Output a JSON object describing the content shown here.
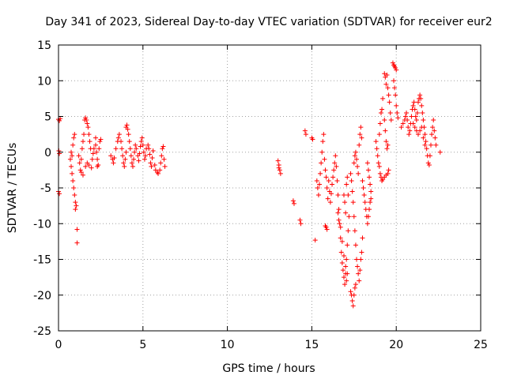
{
  "chart_data": {
    "type": "scatter",
    "title": "Day 341 of 2023, Sidereal Day-to-day VTEC variation (SDTVAR) for receiver eur2",
    "xlabel": "GPS time / hours",
    "ylabel": "SDTVAR / TECUs",
    "xlim": [
      0,
      25
    ],
    "ylim": [
      -25,
      15
    ],
    "xticks": [
      0,
      5,
      10,
      15,
      20,
      25
    ],
    "yticks": [
      -25,
      -20,
      -15,
      -10,
      -5,
      0,
      5,
      10,
      15
    ],
    "grid": true,
    "marker": "+",
    "color": "#ff0000",
    "series": [
      {
        "name": "SDTVAR",
        "points": [
          [
            0.0,
            4.6
          ],
          [
            0.05,
            4.4
          ],
          [
            0.1,
            4.7
          ],
          [
            0.02,
            0.2
          ],
          [
            0.05,
            -0.2
          ],
          [
            0.0,
            -5.5
          ],
          [
            0.05,
            -5.8
          ],
          [
            0.7,
            -1.0
          ],
          [
            0.75,
            -2.0
          ],
          [
            0.8,
            -3.0
          ],
          [
            0.85,
            -4.0
          ],
          [
            0.9,
            -5.0
          ],
          [
            0.95,
            -6.0
          ],
          [
            1.0,
            -7.0
          ],
          [
            1.05,
            -7.5
          ],
          [
            1.0,
            -8.0
          ],
          [
            0.75,
            0.0
          ],
          [
            0.8,
            -0.5
          ],
          [
            0.85,
            1.0
          ],
          [
            0.9,
            2.0
          ],
          [
            0.95,
            2.5
          ],
          [
            1.1,
            -10.8
          ],
          [
            1.1,
            -12.7
          ],
          [
            1.2,
            -0.5
          ],
          [
            1.25,
            -1.5
          ],
          [
            1.3,
            -2.5
          ],
          [
            1.35,
            -1.0
          ],
          [
            1.4,
            0.5
          ],
          [
            1.45,
            1.5
          ],
          [
            1.5,
            2.5
          ],
          [
            1.55,
            4.5
          ],
          [
            1.6,
            4.8
          ],
          [
            1.65,
            4.5
          ],
          [
            1.7,
            4.0
          ],
          [
            1.75,
            3.5
          ],
          [
            1.8,
            2.5
          ],
          [
            1.85,
            1.5
          ],
          [
            1.9,
            0.5
          ],
          [
            1.35,
            -2.8
          ],
          [
            1.45,
            -3.2
          ],
          [
            1.6,
            -2.0
          ],
          [
            1.7,
            -1.5
          ],
          [
            1.8,
            -1.8
          ],
          [
            1.95,
            -2.2
          ],
          [
            2.0,
            -1.0
          ],
          [
            2.05,
            -0.2
          ],
          [
            2.1,
            0.5
          ],
          [
            2.2,
            1.0
          ],
          [
            2.25,
            0.0
          ],
          [
            2.3,
            -1.0
          ],
          [
            2.35,
            -1.8
          ],
          [
            2.4,
            0.5
          ],
          [
            2.45,
            1.5
          ],
          [
            2.5,
            1.8
          ],
          [
            2.2,
            2.0
          ],
          [
            2.3,
            -2.0
          ],
          [
            3.1,
            -0.5
          ],
          [
            3.2,
            -1.0
          ],
          [
            3.25,
            -1.5
          ],
          [
            3.3,
            -0.8
          ],
          [
            3.4,
            0.5
          ],
          [
            3.5,
            1.5
          ],
          [
            3.55,
            2.0
          ],
          [
            3.6,
            2.5
          ],
          [
            3.7,
            1.5
          ],
          [
            3.75,
            0.5
          ],
          [
            3.8,
            -0.5
          ],
          [
            3.85,
            -1.5
          ],
          [
            3.9,
            -2.0
          ],
          [
            3.95,
            -1.0
          ],
          [
            4.0,
            0.0
          ],
          [
            4.0,
            3.5
          ],
          [
            4.05,
            3.8
          ],
          [
            4.1,
            3.2
          ],
          [
            4.15,
            2.5
          ],
          [
            4.2,
            1.5
          ],
          [
            4.25,
            0.5
          ],
          [
            4.3,
            -0.5
          ],
          [
            4.35,
            -1.5
          ],
          [
            4.4,
            -2.0
          ],
          [
            4.45,
            -1.0
          ],
          [
            4.5,
            0.0
          ],
          [
            4.55,
            1.0
          ],
          [
            4.6,
            0.5
          ],
          [
            4.7,
            -0.5
          ],
          [
            4.75,
            -1.2
          ],
          [
            4.8,
            -0.2
          ],
          [
            4.85,
            0.8
          ],
          [
            4.9,
            1.5
          ],
          [
            4.95,
            2.0
          ],
          [
            5.0,
            1.0
          ],
          [
            5.05,
            0.0
          ],
          [
            5.1,
            -1.0
          ],
          [
            5.15,
            -0.5
          ],
          [
            5.2,
            0.5
          ],
          [
            5.3,
            1.0
          ],
          [
            5.35,
            0.5
          ],
          [
            5.4,
            -0.3
          ],
          [
            5.45,
            -1.5
          ],
          [
            5.5,
            -2.0
          ],
          [
            5.55,
            -0.8
          ],
          [
            5.6,
            0.2
          ],
          [
            5.7,
            -1.8
          ],
          [
            5.75,
            -2.5
          ],
          [
            5.85,
            -2.8
          ],
          [
            5.9,
            -3.0
          ],
          [
            6.0,
            -2.5
          ],
          [
            6.05,
            -1.5
          ],
          [
            6.1,
            -0.5
          ],
          [
            6.15,
            0.5
          ],
          [
            6.2,
            0.8
          ],
          [
            6.25,
            -1.0
          ],
          [
            6.3,
            -2.0
          ],
          [
            13.0,
            -1.2
          ],
          [
            13.05,
            -1.8
          ],
          [
            13.1,
            -2.5
          ],
          [
            13.15,
            -3.0
          ],
          [
            13.05,
            -2.2
          ],
          [
            13.9,
            -6.8
          ],
          [
            13.95,
            -7.2
          ],
          [
            14.3,
            -9.5
          ],
          [
            14.35,
            -10.0
          ],
          [
            14.6,
            3.0
          ],
          [
            14.65,
            2.5
          ],
          [
            15.0,
            2.0
          ],
          [
            15.05,
            1.8
          ],
          [
            15.2,
            -12.3
          ],
          [
            15.3,
            -4.0
          ],
          [
            15.35,
            -5.0
          ],
          [
            15.4,
            -6.0
          ],
          [
            15.45,
            -4.5
          ],
          [
            15.5,
            -3.0
          ],
          [
            15.55,
            -1.5
          ],
          [
            15.6,
            0.0
          ],
          [
            15.65,
            1.5
          ],
          [
            15.7,
            2.5
          ],
          [
            15.75,
            -1.0
          ],
          [
            15.8,
            -2.5
          ],
          [
            15.85,
            -3.5
          ],
          [
            15.9,
            -5.0
          ],
          [
            15.95,
            -6.5
          ],
          [
            15.8,
            -10.3
          ],
          [
            15.85,
            -10.5
          ],
          [
            15.9,
            -10.8
          ],
          [
            16.0,
            -4.0
          ],
          [
            16.05,
            -5.5
          ],
          [
            16.1,
            -7.0
          ],
          [
            16.15,
            -5.8
          ],
          [
            16.2,
            -4.5
          ],
          [
            16.25,
            -3.5
          ],
          [
            16.3,
            -2.5
          ],
          [
            16.35,
            -1.5
          ],
          [
            16.4,
            -0.5
          ],
          [
            16.45,
            -2.0
          ],
          [
            16.5,
            -4.0
          ],
          [
            16.55,
            -6.0
          ],
          [
            16.6,
            -8.0
          ],
          [
            16.65,
            -10.0
          ],
          [
            16.7,
            -12.0
          ],
          [
            16.75,
            -14.0
          ],
          [
            16.8,
            -15.5
          ],
          [
            16.85,
            -16.5
          ],
          [
            16.9,
            -17.5
          ],
          [
            16.95,
            -18.5
          ],
          [
            17.0,
            -17.0
          ],
          [
            17.05,
            -15.0
          ],
          [
            17.1,
            -13.0
          ],
          [
            17.15,
            -11.0
          ],
          [
            17.2,
            -9.0
          ],
          [
            16.55,
            -8.5
          ],
          [
            16.6,
            -9.5
          ],
          [
            16.7,
            -10.5
          ],
          [
            16.8,
            -12.5
          ],
          [
            16.9,
            -14.5
          ],
          [
            17.0,
            -16.0
          ],
          [
            17.05,
            -18.0
          ],
          [
            17.1,
            -17.0
          ],
          [
            16.9,
            -6.0
          ],
          [
            16.95,
            -7.0
          ],
          [
            17.0,
            -8.5
          ],
          [
            17.05,
            -4.5
          ],
          [
            17.1,
            -3.5
          ],
          [
            17.15,
            -6.0
          ],
          [
            17.3,
            -3.0
          ],
          [
            17.35,
            -4.0
          ],
          [
            17.4,
            -5.5
          ],
          [
            17.45,
            -7.0
          ],
          [
            17.5,
            -9.0
          ],
          [
            17.55,
            -11.0
          ],
          [
            17.6,
            -13.0
          ],
          [
            17.65,
            -15.0
          ],
          [
            17.3,
            -19.5
          ],
          [
            17.35,
            -20.0
          ],
          [
            17.4,
            -20.8
          ],
          [
            17.45,
            -21.5
          ],
          [
            17.5,
            -20.0
          ],
          [
            17.55,
            -19.0
          ],
          [
            17.6,
            -18.5
          ],
          [
            17.7,
            -16.0
          ],
          [
            17.75,
            -17.0
          ],
          [
            17.8,
            -18.0
          ],
          [
            17.85,
            -16.5
          ],
          [
            17.9,
            -15.0
          ],
          [
            17.95,
            -14.0
          ],
          [
            18.0,
            -12.0
          ],
          [
            17.5,
            -1.5
          ],
          [
            17.55,
            -0.5
          ],
          [
            17.6,
            0.0
          ],
          [
            17.65,
            -1.0
          ],
          [
            17.7,
            -2.0
          ],
          [
            17.75,
            -3.0
          ],
          [
            17.8,
            1.0
          ],
          [
            17.85,
            2.5
          ],
          [
            17.9,
            3.5
          ],
          [
            17.95,
            2.0
          ],
          [
            18.0,
            -4.0
          ],
          [
            18.05,
            -5.0
          ],
          [
            18.1,
            -6.0
          ],
          [
            18.15,
            -7.0
          ],
          [
            18.2,
            -8.0
          ],
          [
            18.25,
            -9.0
          ],
          [
            18.3,
            -10.0
          ],
          [
            18.35,
            -9.0
          ],
          [
            18.4,
            -8.0
          ],
          [
            18.45,
            -7.0
          ],
          [
            18.5,
            -6.5
          ],
          [
            18.3,
            -1.5
          ],
          [
            18.35,
            -2.5
          ],
          [
            18.4,
            -3.5
          ],
          [
            18.45,
            -4.5
          ],
          [
            18.5,
            -5.5
          ],
          [
            18.8,
            1.5
          ],
          [
            18.85,
            0.5
          ],
          [
            18.9,
            -0.5
          ],
          [
            18.95,
            -1.5
          ],
          [
            19.0,
            -2.0
          ],
          [
            19.05,
            -3.0
          ],
          [
            19.1,
            -3.5
          ],
          [
            19.15,
            -4.0
          ],
          [
            19.2,
            -3.8
          ],
          [
            19.3,
            -3.5
          ],
          [
            19.4,
            -3.2
          ],
          [
            19.5,
            -3.0
          ],
          [
            19.55,
            -2.5
          ],
          [
            19.0,
            2.5
          ],
          [
            19.05,
            4.0
          ],
          [
            19.1,
            5.5
          ],
          [
            19.15,
            6.0
          ],
          [
            19.2,
            7.5
          ],
          [
            19.3,
            4.5
          ],
          [
            19.35,
            3.0
          ],
          [
            19.4,
            1.5
          ],
          [
            19.45,
            0.5
          ],
          [
            19.5,
            1.0
          ],
          [
            19.3,
            11.0
          ],
          [
            19.35,
            10.5
          ],
          [
            19.4,
            9.5
          ],
          [
            19.45,
            10.8
          ],
          [
            19.5,
            9.0
          ],
          [
            19.55,
            8.0
          ],
          [
            19.6,
            7.0
          ],
          [
            19.65,
            5.5
          ],
          [
            19.7,
            4.5
          ],
          [
            19.8,
            12.5
          ],
          [
            19.85,
            12.2
          ],
          [
            19.9,
            12.0
          ],
          [
            19.95,
            11.8
          ],
          [
            20.0,
            11.5
          ],
          [
            19.85,
            10.0
          ],
          [
            19.9,
            9.0
          ],
          [
            19.95,
            8.0
          ],
          [
            20.0,
            6.5
          ],
          [
            20.05,
            5.5
          ],
          [
            20.1,
            4.8
          ],
          [
            20.3,
            3.5
          ],
          [
            20.4,
            4.0
          ],
          [
            20.5,
            4.5
          ],
          [
            20.55,
            5.0
          ],
          [
            20.6,
            5.5
          ],
          [
            20.65,
            4.5
          ],
          [
            20.7,
            3.5
          ],
          [
            20.75,
            2.5
          ],
          [
            20.8,
            3.0
          ],
          [
            20.85,
            4.0
          ],
          [
            20.9,
            5.0
          ],
          [
            20.95,
            6.0
          ],
          [
            21.0,
            6.5
          ],
          [
            21.05,
            7.0
          ],
          [
            21.1,
            6.0
          ],
          [
            21.15,
            5.0
          ],
          [
            21.2,
            4.5
          ],
          [
            21.25,
            5.5
          ],
          [
            21.3,
            7.0
          ],
          [
            21.35,
            7.5
          ],
          [
            21.4,
            8.0
          ],
          [
            21.45,
            7.5
          ],
          [
            21.5,
            6.5
          ],
          [
            21.55,
            5.5
          ],
          [
            21.6,
            4.5
          ],
          [
            21.65,
            3.5
          ],
          [
            21.7,
            2.5
          ],
          [
            21.75,
            1.5
          ],
          [
            21.8,
            0.5
          ],
          [
            21.85,
            -0.5
          ],
          [
            21.9,
            -1.5
          ],
          [
            21.95,
            -1.8
          ],
          [
            22.0,
            -0.5
          ],
          [
            22.05,
            1.0
          ],
          [
            22.1,
            2.5
          ],
          [
            22.15,
            3.5
          ],
          [
            22.2,
            4.5
          ],
          [
            22.25,
            3.0
          ],
          [
            22.3,
            2.0
          ],
          [
            22.35,
            1.0
          ],
          [
            21.0,
            4.0
          ],
          [
            21.1,
            3.5
          ],
          [
            21.2,
            3.0
          ],
          [
            21.3,
            2.5
          ],
          [
            21.4,
            3.0
          ],
          [
            21.5,
            3.5
          ],
          [
            21.6,
            2.0
          ],
          [
            21.7,
            1.0
          ],
          [
            22.6,
            0.0
          ]
        ]
      }
    ]
  }
}
